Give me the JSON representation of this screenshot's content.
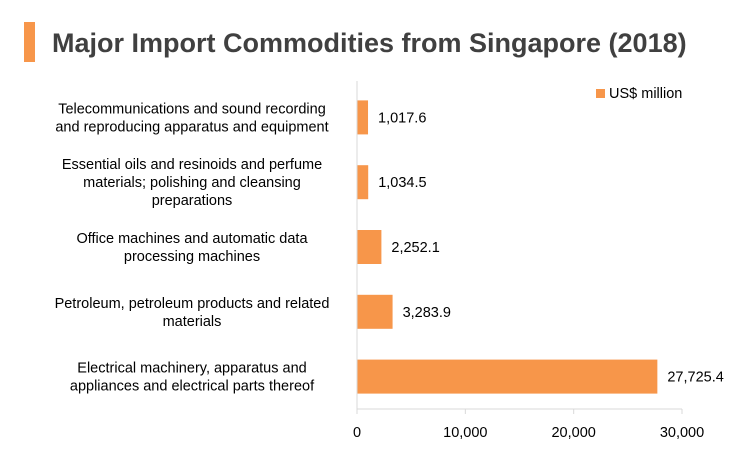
{
  "chart_data": {
    "type": "bar",
    "orientation": "horizontal",
    "title": "Major Import Commodities from Singapore (2018)",
    "categories": [
      [
        "Telecommunications and sound recording",
        "and reproducing apparatus and equipment"
      ],
      [
        "Essential oils and resinoids and perfume",
        "materials; polishing and cleansing",
        "preparations"
      ],
      [
        "Office machines and automatic data",
        "processing machines"
      ],
      [
        "Petroleum, petroleum products and related",
        "materials"
      ],
      [
        "Electrical machinery, apparatus and",
        "appliances and electrical parts thereof"
      ]
    ],
    "series": [
      {
        "name": "US$ million",
        "values": [
          1017.6,
          1034.5,
          2252.1,
          3283.9,
          27725.4
        ],
        "labels": [
          "1,017.6",
          "1,034.5",
          "2,252.1",
          "3,283.9",
          "27,725.4"
        ]
      }
    ],
    "xlim": [
      0,
      30000
    ],
    "xticks": [
      0,
      10000,
      20000,
      30000
    ],
    "xtick_labels": [
      "0",
      "10,000",
      "20,000",
      "30,000"
    ],
    "grid": false,
    "legend_position": "top-right",
    "colors": {
      "bar": "#f7964a",
      "axis": "#d9d9d9",
      "title_accent": "#f7964a"
    }
  }
}
